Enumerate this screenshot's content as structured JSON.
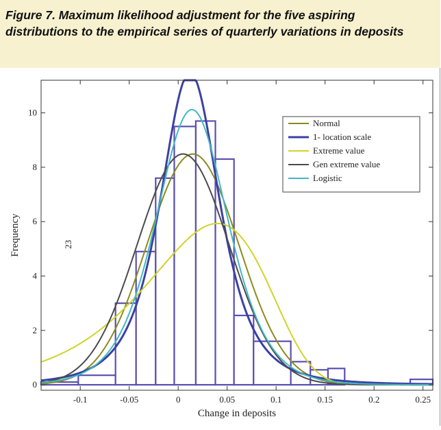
{
  "figure": {
    "caption": "Figure 7. Maximum likelihood adjustment for the five aspiring distributions to the empirical series of quarterly variations in deposits"
  },
  "chart_data": {
    "type": "bar",
    "xlabel": "Change in deposits",
    "ylabel": "Frequency",
    "xlim": [
      -0.14,
      0.26
    ],
    "ylim": [
      -0.2,
      11.2
    ],
    "xticks": [
      -0.1,
      -0.05,
      0,
      0.05,
      0.1,
      0.15,
      0.2,
      0.25
    ],
    "xtick_labels": [
      "-0.1",
      "-0.05",
      "0",
      "0.05",
      "0.1",
      "0.15",
      "0.2",
      "0.25"
    ],
    "yticks": [
      0,
      2,
      4,
      6,
      8,
      10
    ],
    "ytick_labels": [
      "0",
      "2",
      "4",
      "6",
      "8",
      "10"
    ],
    "annotation": "23",
    "histogram": [
      {
        "x0": -0.14,
        "x1": -0.102,
        "value": 0.1
      },
      {
        "x0": -0.102,
        "x1": -0.064,
        "value": 0.35
      },
      {
        "x0": -0.064,
        "x1": -0.043,
        "value": 3.0
      },
      {
        "x0": -0.043,
        "x1": -0.023,
        "value": 4.9
      },
      {
        "x0": -0.023,
        "x1": -0.004,
        "value": 7.6
      },
      {
        "x0": -0.004,
        "x1": 0.018,
        "value": 9.5
      },
      {
        "x0": 0.018,
        "x1": 0.038,
        "value": 9.7
      },
      {
        "x0": 0.038,
        "x1": 0.057,
        "value": 8.3
      },
      {
        "x0": 0.057,
        "x1": 0.077,
        "value": 2.55
      },
      {
        "x0": 0.077,
        "x1": 0.115,
        "value": 1.6
      },
      {
        "x0": 0.115,
        "x1": 0.135,
        "value": 0.85
      },
      {
        "x0": 0.135,
        "x1": 0.153,
        "value": 0.55
      },
      {
        "x0": 0.153,
        "x1": 0.17,
        "value": 0.6
      },
      {
        "x0": 0.237,
        "x1": 0.26,
        "value": 0.2
      }
    ],
    "histogram_color": "#5a4fb0",
    "legend_position": "top-right",
    "series": [
      {
        "name": "Normal",
        "color": "#8b8a1f",
        "dist": "normal",
        "mu": 0.015,
        "sigma": 0.047
      },
      {
        "name": "1- location scale",
        "color": "#3c40a3",
        "dist": "tlocscale",
        "mu": 0.012,
        "sigma": 0.032,
        "nu": 3
      },
      {
        "name": "Extreme value",
        "color": "#d1d22a",
        "dist": "extreme",
        "mu": 0.04,
        "sigma": 0.062
      },
      {
        "name": "Gen extreme value",
        "color": "#4a4a4a",
        "dist": "normal",
        "mu": 0.005,
        "sigma": 0.047
      },
      {
        "name": "Logistic",
        "color": "#41b8c4",
        "dist": "logistic",
        "mu": 0.014,
        "s": 0.0247
      }
    ]
  }
}
